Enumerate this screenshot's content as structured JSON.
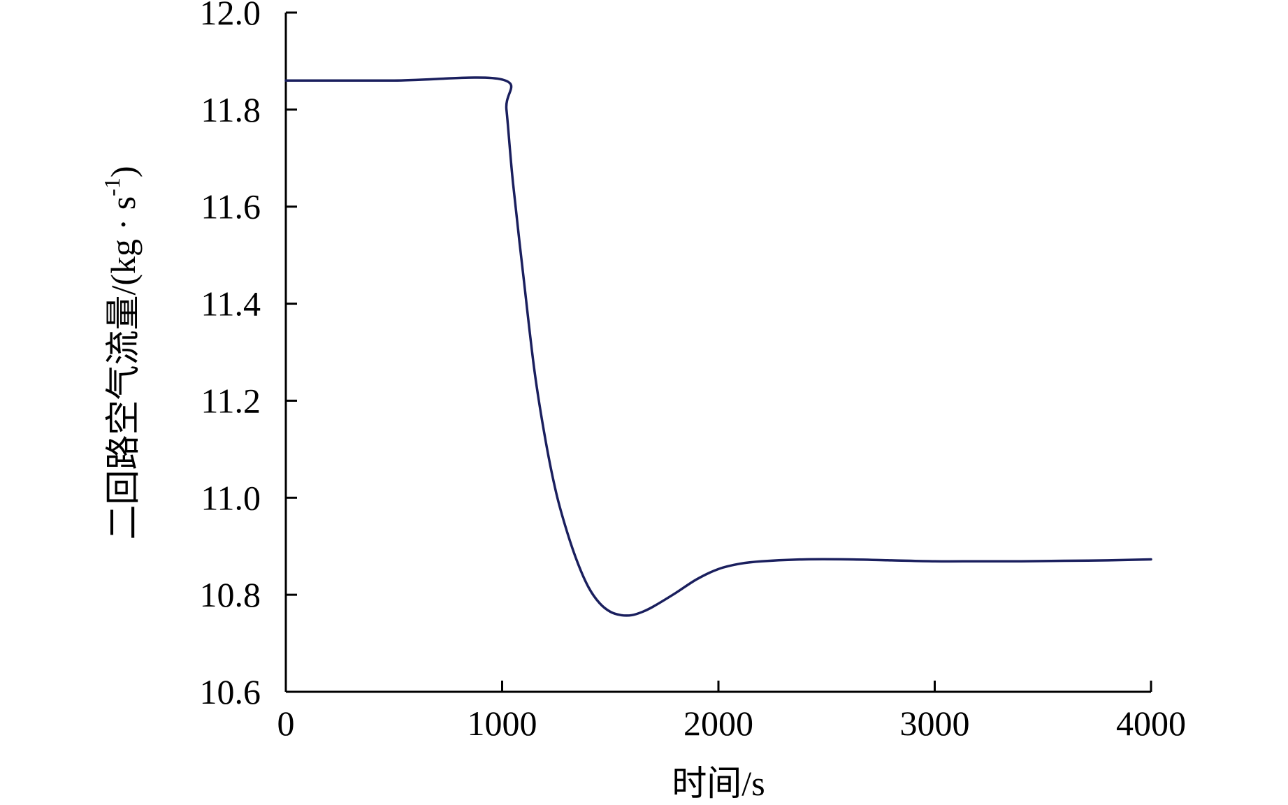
{
  "chart_data": {
    "type": "line",
    "title": "",
    "xlabel": "时间/s",
    "ylabel": "二回路空气流量/(kg · s",
    "ylabel_superscript": "-1",
    "ylabel_suffix": ")",
    "xlim": [
      0,
      4000
    ],
    "ylim": [
      10.6,
      12.0
    ],
    "xticks": [
      0,
      1000,
      2000,
      3000,
      4000
    ],
    "xtick_labels": [
      "0",
      "1000",
      "2000",
      "3000",
      "4000"
    ],
    "yticks": [
      10.6,
      10.8,
      11.0,
      11.2,
      11.4,
      11.6,
      11.8,
      12.0
    ],
    "ytick_labels": [
      "10.6",
      "10.8",
      "11.0",
      "11.2",
      "11.4",
      "11.6",
      "11.8",
      "12.0"
    ],
    "grid": false,
    "legend": "none",
    "line_color": "#1a1f5e",
    "series": [
      {
        "x": [
          0,
          500,
          1000,
          1020,
          1050,
          1100,
          1150,
          1200,
          1250,
          1300,
          1350,
          1400,
          1450,
          1500,
          1550,
          1600,
          1650,
          1700,
          1800,
          1900,
          2000,
          2100,
          2200,
          2400,
          2600,
          2800,
          3000,
          3200,
          3400,
          3600,
          3800,
          4000
        ],
        "y": [
          11.86,
          11.86,
          11.862,
          11.8,
          11.65,
          11.45,
          11.26,
          11.12,
          11.01,
          10.93,
          10.865,
          10.815,
          10.783,
          10.765,
          10.758,
          10.758,
          10.765,
          10.776,
          10.803,
          10.832,
          10.853,
          10.864,
          10.869,
          10.873,
          10.873,
          10.871,
          10.869,
          10.869,
          10.869,
          10.87,
          10.871,
          10.873
        ]
      }
    ]
  }
}
